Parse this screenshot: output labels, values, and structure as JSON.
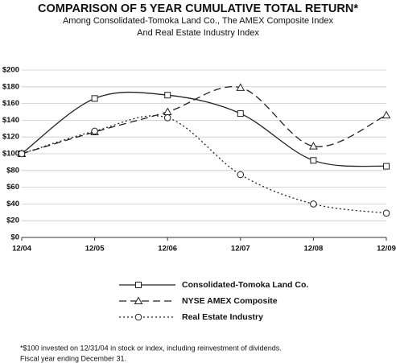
{
  "chart_data": {
    "type": "line",
    "title": "COMPARISON OF 5 YEAR CUMULATIVE TOTAL RETURN*",
    "subtitle": [
      "Among Consolidated-Tomoka Land Co., The AMEX Composite Index",
      "And Real Estate Industry Index"
    ],
    "categories": [
      "12/04",
      "12/05",
      "12/06",
      "12/07",
      "12/08",
      "12/09"
    ],
    "series": [
      {
        "name": "Consolidated-Tomoka Land Co.",
        "color": "#222222",
        "style": "solid",
        "marker": "square",
        "values": [
          100,
          166,
          170,
          148,
          92,
          85
        ]
      },
      {
        "name": "NYSE AMEX Composite",
        "color": "#222222",
        "style": "dashed",
        "marker": "triangle",
        "values": [
          100,
          126,
          150,
          179,
          109,
          146
        ]
      },
      {
        "name": "Real Estate Industry",
        "color": "#222222",
        "style": "dotted",
        "marker": "circle",
        "values": [
          100,
          127,
          143,
          75,
          40,
          29
        ]
      }
    ],
    "ylim": [
      0,
      200
    ],
    "yticks": [
      {
        "value": 0,
        "label": "$0"
      },
      {
        "value": 20,
        "label": "$20"
      },
      {
        "value": 40,
        "label": "$40"
      },
      {
        "value": 60,
        "label": "$60"
      },
      {
        "value": 80,
        "label": "$80"
      },
      {
        "value": 100,
        "label": "$100"
      },
      {
        "value": 120,
        "label": "$120"
      },
      {
        "value": 140,
        "label": "$140"
      },
      {
        "value": 160,
        "label": "$160"
      },
      {
        "value": 180,
        "label": "$180"
      },
      {
        "value": 200,
        "label": "$200"
      }
    ],
    "grid": true,
    "notes": [
      "*$100 invested on 12/31/04 in stock or index, including reinvestment of dividends.",
      "Fiscal year ending December 31."
    ]
  }
}
